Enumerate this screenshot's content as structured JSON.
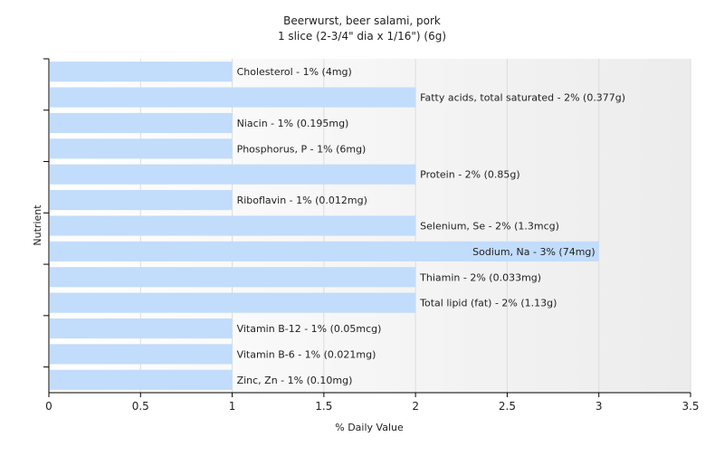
{
  "chart_data": {
    "type": "bar",
    "orientation": "horizontal",
    "title": "Beerwurst, beer salami, pork",
    "subtitle": "1 slice (2-3/4\" dia x 1/16\") (6g)",
    "xlabel": "% Daily Value",
    "ylabel": "Nutrient",
    "xlim": [
      0,
      3.5
    ],
    "xticks": [
      "0",
      "0.5",
      "1",
      "1.5",
      "2",
      "2.5",
      "3",
      "3.5"
    ],
    "grid": true,
    "bar_color": "#c2dcfb",
    "categories": [
      "Cholesterol",
      "Fatty acids, total saturated",
      "Niacin",
      "Phosphorus, P",
      "Protein",
      "Riboflavin",
      "Selenium, Se",
      "Sodium, Na",
      "Thiamin",
      "Total lipid (fat)",
      "Vitamin B-12",
      "Vitamin B-6",
      "Zinc, Zn"
    ],
    "values": [
      1,
      2,
      1,
      1,
      2,
      1,
      2,
      3,
      2,
      2,
      1,
      1,
      1
    ],
    "labels": [
      "Cholesterol - 1% (4mg)",
      "Fatty acids, total saturated - 2% (0.377g)",
      "Niacin - 1% (0.195mg)",
      "Phosphorus, P - 1% (6mg)",
      "Protein - 2% (0.85g)",
      "Riboflavin - 1% (0.012mg)",
      "Selenium, Se - 2% (1.3mcg)",
      "Sodium, Na - 3% (74mg)",
      "Thiamin - 2% (0.033mg)",
      "Total lipid (fat) - 2% (1.13g)",
      "Vitamin B-12 - 1% (0.05mcg)",
      "Vitamin B-6 - 1% (0.021mg)",
      "Zinc, Zn - 1% (0.10mg)"
    ]
  }
}
